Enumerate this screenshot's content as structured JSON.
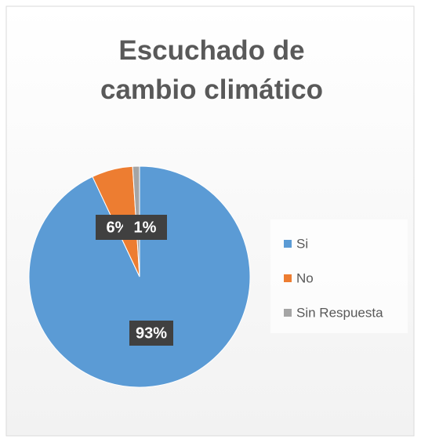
{
  "chart_data": {
    "type": "pie",
    "title": "Escuchado de cambio climático",
    "categories": [
      "Si",
      "No",
      "Sin Respuesta"
    ],
    "values": [
      93,
      6,
      1
    ],
    "value_labels": [
      "93%",
      "6%",
      "1%"
    ],
    "colors": [
      "#5b9bd5",
      "#ed7d31",
      "#a5a5a5"
    ],
    "legend": "right"
  }
}
